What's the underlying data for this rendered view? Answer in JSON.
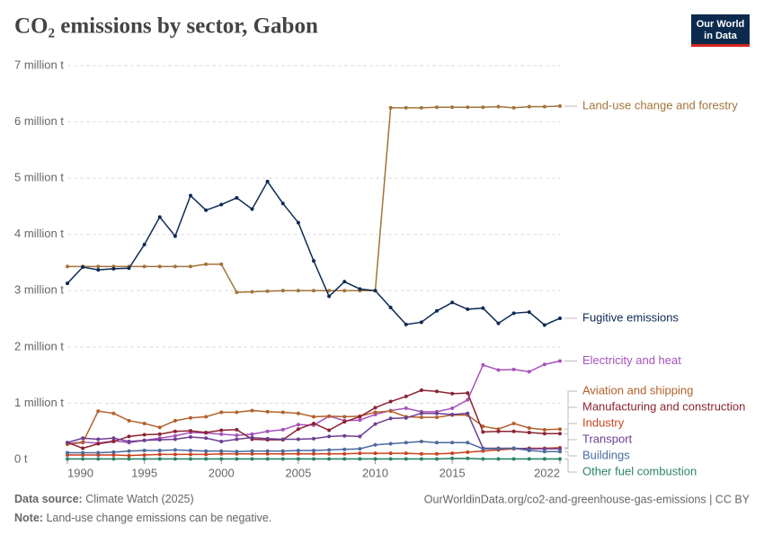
{
  "chart_data": {
    "type": "line",
    "title": "CO₂ emissions by sector, Gabon",
    "logo": [
      "Our World",
      "in Data"
    ],
    "x": [
      1990,
      1991,
      1992,
      1993,
      1994,
      1995,
      1996,
      1997,
      1998,
      1999,
      2000,
      2001,
      2002,
      2003,
      2004,
      2005,
      2006,
      2007,
      2008,
      2009,
      2010,
      2011,
      2012,
      2013,
      2014,
      2015,
      2016,
      2017,
      2018,
      2019,
      2020,
      2021,
      2022
    ],
    "xlim": [
      1990,
      2022
    ],
    "xticks": [
      1990,
      1995,
      2000,
      2005,
      2010,
      2015,
      2022
    ],
    "ylim": [
      0,
      7
    ],
    "yticks": [
      {
        "value": 0,
        "label": "0 t"
      },
      {
        "value": 1,
        "label": "1 million t"
      },
      {
        "value": 2,
        "label": "2 million t"
      },
      {
        "value": 3,
        "label": "3 million t"
      },
      {
        "value": 4,
        "label": "4 million t"
      },
      {
        "value": 5,
        "label": "5 million t"
      },
      {
        "value": 6,
        "label": "6 million t"
      },
      {
        "value": 7,
        "label": "7 million t"
      }
    ],
    "grid": true,
    "series": [
      {
        "name": "Land-use change and forestry",
        "color": "#a2733a",
        "values": [
          3.43,
          3.43,
          3.43,
          3.43,
          3.43,
          3.43,
          3.43,
          3.43,
          3.43,
          3.47,
          3.47,
          2.97,
          2.98,
          2.99,
          3.0,
          3.0,
          3.0,
          3.0,
          3.0,
          3.0,
          3.0,
          6.25,
          6.25,
          6.25,
          6.26,
          6.26,
          6.26,
          6.26,
          6.27,
          6.25,
          6.27,
          6.27,
          6.28
        ]
      },
      {
        "name": "Fugitive emissions",
        "color": "#0b2a54",
        "values": [
          3.13,
          3.42,
          3.37,
          3.39,
          3.4,
          3.82,
          4.31,
          3.97,
          4.69,
          4.43,
          4.53,
          4.65,
          4.45,
          4.94,
          4.55,
          4.21,
          3.53,
          2.9,
          3.16,
          3.03,
          3.0,
          2.7,
          2.4,
          2.44,
          2.64,
          2.79,
          2.67,
          2.69,
          2.42,
          2.6,
          2.62,
          2.39,
          2.51
        ]
      },
      {
        "name": "Electricity and heat",
        "color": "#a652ba",
        "values": [
          0.28,
          0.31,
          0.29,
          0.33,
          0.3,
          0.34,
          0.38,
          0.42,
          0.48,
          0.47,
          0.45,
          0.43,
          0.45,
          0.5,
          0.53,
          0.62,
          0.61,
          0.77,
          0.69,
          0.7,
          0.8,
          0.87,
          0.91,
          0.85,
          0.85,
          0.91,
          1.06,
          1.68,
          1.59,
          1.6,
          1.56,
          1.69,
          1.75
        ]
      },
      {
        "name": "Aviation and shipping",
        "color": "#b3602a",
        "values": [
          0.27,
          0.3,
          0.86,
          0.82,
          0.69,
          0.64,
          0.57,
          0.69,
          0.74,
          0.76,
          0.84,
          0.84,
          0.87,
          0.85,
          0.84,
          0.82,
          0.76,
          0.77,
          0.76,
          0.77,
          0.84,
          0.86,
          0.76,
          0.75,
          0.75,
          0.79,
          0.79,
          0.59,
          0.54,
          0.64,
          0.56,
          0.53,
          0.54
        ]
      },
      {
        "name": "Manufacturing and construction",
        "color": "#8c2331",
        "values": [
          0.3,
          0.2,
          0.28,
          0.32,
          0.41,
          0.44,
          0.45,
          0.5,
          0.51,
          0.48,
          0.52,
          0.53,
          0.36,
          0.35,
          0.35,
          0.54,
          0.64,
          0.52,
          0.67,
          0.76,
          0.92,
          1.03,
          1.12,
          1.23,
          1.21,
          1.17,
          1.18,
          0.49,
          0.5,
          0.5,
          0.48,
          0.46,
          0.46
        ]
      },
      {
        "name": "Industry",
        "color": "#c9431e",
        "values": [
          0.08,
          0.08,
          0.08,
          0.08,
          0.07,
          0.08,
          0.09,
          0.09,
          0.09,
          0.09,
          0.1,
          0.1,
          0.1,
          0.1,
          0.1,
          0.1,
          0.1,
          0.1,
          0.1,
          0.11,
          0.11,
          0.11,
          0.11,
          0.1,
          0.1,
          0.11,
          0.13,
          0.15,
          0.17,
          0.19,
          0.2,
          0.2,
          0.21
        ]
      },
      {
        "name": "Transport",
        "color": "#6d3e91",
        "values": [
          0.3,
          0.38,
          0.36,
          0.38,
          0.32,
          0.34,
          0.35,
          0.36,
          0.4,
          0.38,
          0.32,
          0.36,
          0.39,
          0.37,
          0.36,
          0.36,
          0.37,
          0.41,
          0.42,
          0.41,
          0.63,
          0.73,
          0.74,
          0.82,
          0.82,
          0.8,
          0.82,
          0.2,
          0.2,
          0.2,
          0.19,
          0.19,
          0.19
        ]
      },
      {
        "name": "Buildings",
        "color": "#4c6a9c",
        "values": [
          0.12,
          0.12,
          0.12,
          0.13,
          0.15,
          0.16,
          0.16,
          0.17,
          0.16,
          0.15,
          0.15,
          0.14,
          0.15,
          0.15,
          0.15,
          0.16,
          0.16,
          0.17,
          0.18,
          0.19,
          0.26,
          0.28,
          0.3,
          0.32,
          0.3,
          0.3,
          0.3,
          0.19,
          0.19,
          0.2,
          0.16,
          0.14,
          0.14
        ]
      },
      {
        "name": "Other fuel combustion",
        "color": "#2c8465",
        "values": [
          0.01,
          0.01,
          0.01,
          0.01,
          0.01,
          0.01,
          0.01,
          0.01,
          0.01,
          0.01,
          0.01,
          0.01,
          0.01,
          0.01,
          0.01,
          0.01,
          0.01,
          0.01,
          0.01,
          0.01,
          0.01,
          0.01,
          0.01,
          0.01,
          0.01,
          0.02,
          0.02,
          0.01,
          0.01,
          0.01,
          0.01,
          0.01,
          0.01
        ]
      }
    ],
    "source_label": "Data source:",
    "source": "Climate Watch (2025)",
    "url": "OurWorldinData.org/co2-and-greenhouse-gas-emissions | CC BY",
    "note_label": "Note:",
    "note": "Land-use change emissions can be negative."
  }
}
